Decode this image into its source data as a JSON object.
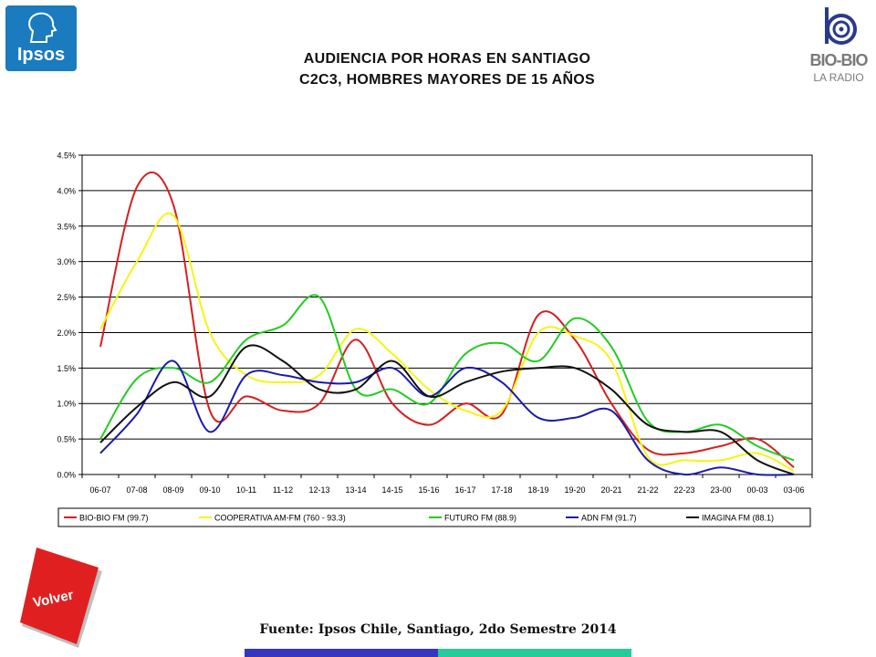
{
  "header": {
    "title_line1": "AUDIENCIA POR HORAS EN SANTIAGO",
    "title_line2": "C2C3, HOMBRES MAYORES DE 15 AÑOS"
  },
  "logos": {
    "ipsos": "Ipsos",
    "biobio_main": "BIO-BIO",
    "biobio_sub": "LA RADIO"
  },
  "volver_button": {
    "label": "Volver",
    "color": "#e02020"
  },
  "footer": {
    "source": "Fuente: Ipsos Chile, Santiago, 2do Semestre 2014",
    "bar_colors": [
      "#3636c0",
      "#24cc9a"
    ]
  },
  "chart_data": {
    "type": "line",
    "categories": [
      "06-07",
      "07-08",
      "08-09",
      "09-10",
      "10-11",
      "11-12",
      "12-13",
      "13-14",
      "14-15",
      "15-16",
      "16-17",
      "17-18",
      "18-19",
      "19-20",
      "20-21",
      "21-22",
      "22-23",
      "23-00",
      "00-03",
      "03-06"
    ],
    "ylim": [
      0,
      4.5
    ],
    "yticks": [
      0,
      0.5,
      1.0,
      1.5,
      2.0,
      2.5,
      3.0,
      3.5,
      4.0,
      4.5
    ],
    "ytick_labels": [
      "0.0%",
      "0.5%",
      "1.0%",
      "1.5%",
      "2.0%",
      "2.5%",
      "3.0%",
      "3.5%",
      "4.0%",
      "4.5%"
    ],
    "grid": true,
    "legend_position": "bottom",
    "series": [
      {
        "name": "BIO-BIO FM (99.7)",
        "color": "#d42020",
        "values": [
          1.8,
          4.05,
          3.8,
          0.9,
          1.1,
          0.9,
          1.0,
          1.9,
          1.0,
          0.7,
          1.0,
          0.85,
          2.25,
          1.9,
          1.0,
          0.35,
          0.3,
          0.4,
          0.5,
          0.1
        ]
      },
      {
        "name": "COOPERATIVA AM-FM (760 - 93.3)",
        "color": "#f5f514",
        "values": [
          2.05,
          3.0,
          3.65,
          2.0,
          1.4,
          1.3,
          1.4,
          2.05,
          1.7,
          1.2,
          0.9,
          0.9,
          2.0,
          1.95,
          1.6,
          0.25,
          0.2,
          0.2,
          0.3,
          0.05
        ]
      },
      {
        "name": "FUTURO FM (88.9)",
        "color": "#22cc22",
        "values": [
          0.5,
          1.35,
          1.5,
          1.3,
          1.9,
          2.1,
          2.5,
          1.2,
          1.2,
          1.0,
          1.7,
          1.85,
          1.6,
          2.2,
          1.8,
          0.75,
          0.6,
          0.7,
          0.4,
          0.2
        ]
      },
      {
        "name": "ADN FM (91.7)",
        "color": "#1a1aaa",
        "values": [
          0.3,
          0.85,
          1.6,
          0.6,
          1.4,
          1.4,
          1.3,
          1.3,
          1.5,
          1.1,
          1.5,
          1.3,
          0.8,
          0.8,
          0.9,
          0.2,
          0.0,
          0.1,
          0.0,
          0.0
        ]
      },
      {
        "name": "IMAGINA FM (88.1)",
        "color": "#111111",
        "values": [
          0.45,
          0.95,
          1.3,
          1.1,
          1.8,
          1.6,
          1.2,
          1.2,
          1.6,
          1.1,
          1.3,
          1.45,
          1.5,
          1.5,
          1.2,
          0.7,
          0.6,
          0.6,
          0.2,
          0.0
        ]
      }
    ]
  }
}
